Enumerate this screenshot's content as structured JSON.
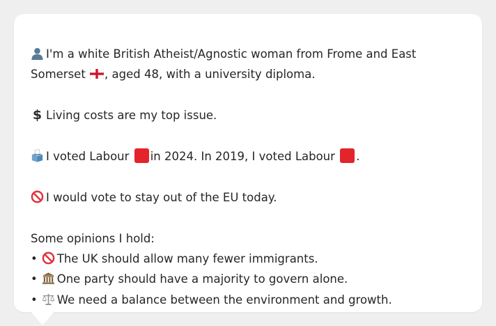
{
  "card": {
    "identity": {
      "text_before_flag": "I'm a white British Atheist/Agnostic woman from Frome and East Somerset",
      "text_after_flag": ", aged 48, with a university diploma.",
      "icon": "person-icon",
      "flag_icon": "england-flag-icon"
    },
    "issue": {
      "text": "Living costs are my top issue.",
      "icon": "dollar-icon",
      "symbol": "$"
    },
    "vote": {
      "text_part1": "I voted Labour",
      "text_part2": "in 2024. In 2019, I voted Labour",
      "text_part3": ".",
      "icon": "ballot-box-icon",
      "party_color": "#e3242b"
    },
    "eu": {
      "text": "I would vote to stay out of the EU today.",
      "icon": "prohibited-icon"
    },
    "opinions": {
      "heading": "Some opinions I hold:",
      "bullet": "•",
      "items": [
        {
          "icon": "prohibited-icon",
          "text": "The UK should allow many fewer immigrants."
        },
        {
          "icon": "classical-building-icon",
          "text": "One party should have a majority to govern alone."
        },
        {
          "icon": "balance-scale-icon",
          "text": "We need a balance between the environment and growth."
        }
      ]
    }
  },
  "colors": {
    "background": "#efefef",
    "card": "#ffffff",
    "text": "#262626"
  }
}
